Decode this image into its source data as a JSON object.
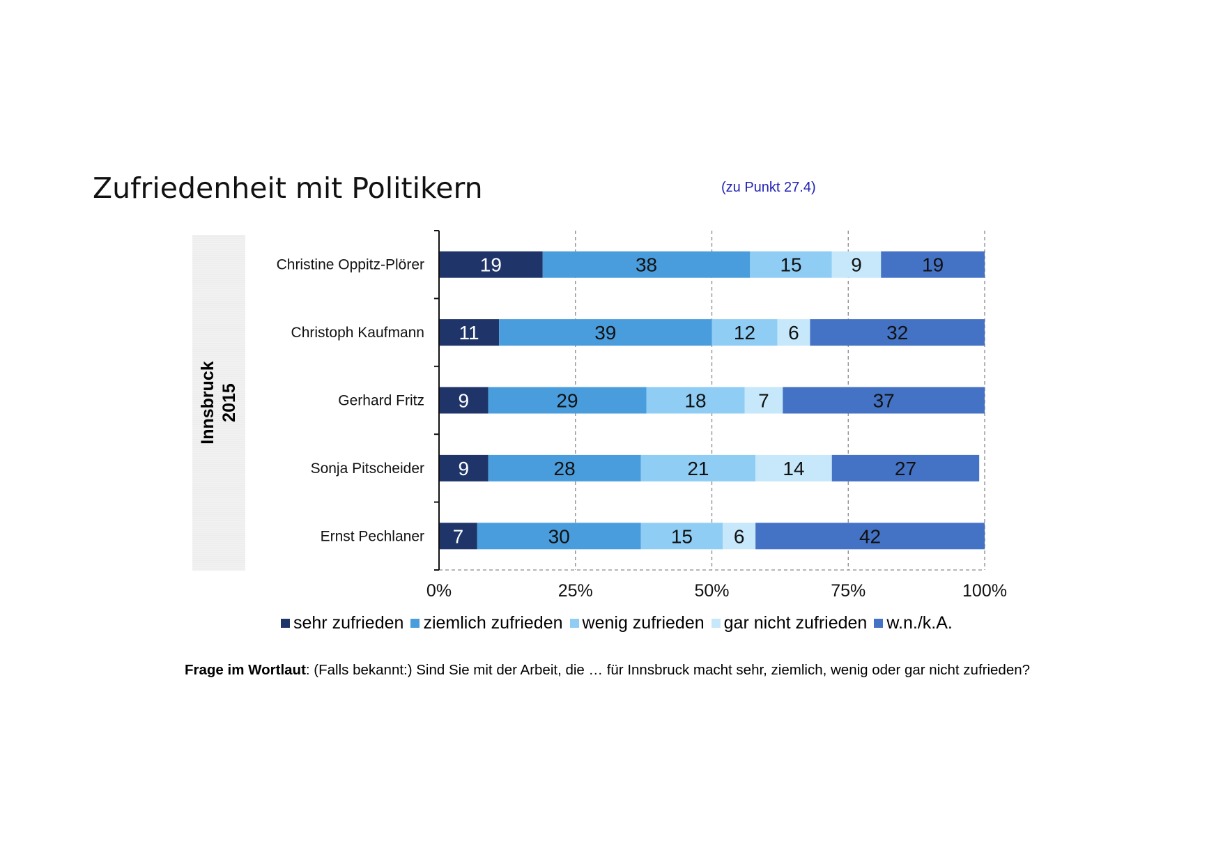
{
  "page": {
    "title": "Zufriedenheit mit Politikern",
    "reference": "(zu Punkt 27.4)",
    "side_label_line1": "Innsbruck",
    "side_label_line2": "2015",
    "question_label": "Frage im Wortlaut",
    "question_text": ": (Falls bekannt:) Sind Sie mit der Arbeit, die … für Innsbruck macht sehr, ziemlich, wenig oder gar nicht zufrieden?"
  },
  "chart_data": {
    "type": "bar",
    "orientation": "horizontal",
    "stacked": "100%",
    "categories": [
      "Christine Oppitz-Plörer",
      "Christoph Kaufmann",
      "Gerhard Fritz",
      "Sonja Pitscheider",
      "Ernst Pechlaner"
    ],
    "series": [
      {
        "name": "sehr zufrieden",
        "color": "#1f3468",
        "label_color": "#ffffff",
        "values": [
          19,
          11,
          9,
          9,
          7
        ]
      },
      {
        "name": "ziemlich zufrieden",
        "color": "#4a9ddc",
        "label_color": "#111111",
        "values": [
          38,
          39,
          29,
          28,
          30
        ]
      },
      {
        "name": "wenig zufrieden",
        "color": "#8fcdf4",
        "label_color": "#111111",
        "values": [
          15,
          12,
          18,
          21,
          15
        ]
      },
      {
        "name": "gar nicht zufrieden",
        "color": "#c6e8fa",
        "label_color": "#111111",
        "values": [
          9,
          6,
          7,
          14,
          6
        ]
      },
      {
        "name": "w.n./k.A.",
        "color": "#4472c4",
        "label_color": "#111111",
        "values": [
          19,
          32,
          37,
          27,
          42
        ]
      }
    ],
    "xlim": [
      0,
      100
    ],
    "x_ticks": [
      "0%",
      "25%",
      "50%",
      "75%",
      "100%"
    ],
    "grid": "vertical dashed",
    "legend_position": "bottom"
  }
}
